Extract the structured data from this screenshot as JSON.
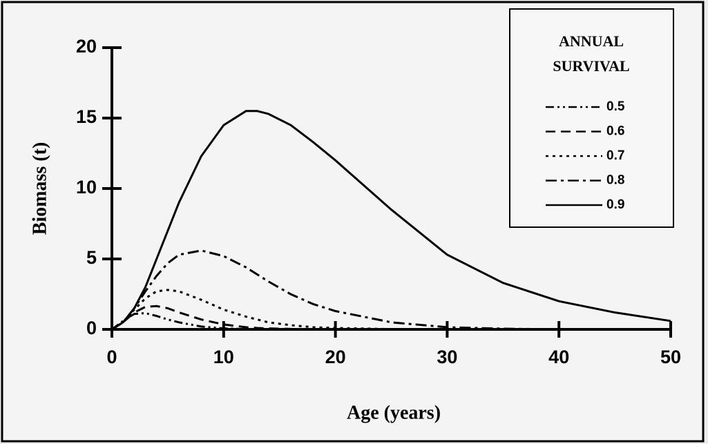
{
  "chart_data": {
    "type": "line",
    "xlabel": "Age (years)",
    "ylabel": "Biomass (t)",
    "legend_title": [
      "ANNUAL",
      "SURVIVAL"
    ],
    "legend": "upper right",
    "x": [
      0,
      1,
      2,
      3,
      4,
      5,
      6,
      8,
      10,
      12,
      13,
      14,
      16,
      18,
      20,
      25,
      30,
      35,
      40,
      45,
      50
    ],
    "series": [
      {
        "name": "0.5",
        "color": "#000000",
        "dash": "12 5 3 5 3 5",
        "values": [
          0,
          0.6,
          1.1,
          1.15,
          0.95,
          0.7,
          0.5,
          0.2,
          0.07,
          0.02,
          0.01,
          0,
          0,
          0,
          0,
          0,
          0,
          0,
          0,
          0,
          0
        ]
      },
      {
        "name": "0.6",
        "color": "#000000",
        "dash": "14 8",
        "values": [
          0,
          0.5,
          1.2,
          1.6,
          1.65,
          1.5,
          1.2,
          0.7,
          0.35,
          0.15,
          0.1,
          0.07,
          0.03,
          0.01,
          0,
          0,
          0,
          0,
          0,
          0,
          0
        ]
      },
      {
        "name": "0.7",
        "color": "#000000",
        "dash": "4 6",
        "values": [
          0,
          0.5,
          1.4,
          2.2,
          2.7,
          2.8,
          2.7,
          2.1,
          1.4,
          0.9,
          0.7,
          0.5,
          0.3,
          0.15,
          0.1,
          0.02,
          0,
          0,
          0,
          0,
          0
        ]
      },
      {
        "name": "0.8",
        "color": "#000000",
        "dash": "16 6 4 6",
        "values": [
          0,
          0.5,
          1.5,
          2.7,
          3.8,
          4.7,
          5.3,
          5.6,
          5.2,
          4.4,
          3.9,
          3.4,
          2.5,
          1.8,
          1.3,
          0.5,
          0.15,
          0.05,
          0,
          0,
          0
        ]
      },
      {
        "name": "0.9",
        "color": "#000000",
        "dash": "none",
        "values": [
          0,
          0.5,
          1.5,
          3,
          5,
          7,
          9,
          12.3,
          14.5,
          15.5,
          15.5,
          15.3,
          14.5,
          13.3,
          12,
          8.5,
          5.3,
          3.3,
          2,
          1.2,
          0.6
        ]
      }
    ],
    "xlim": [
      0,
      50
    ],
    "xticks": [
      0,
      10,
      20,
      30,
      40,
      50
    ],
    "ylim": [
      0,
      20
    ],
    "yticks": [
      0,
      5,
      10,
      15,
      20
    ],
    "grid": false
  }
}
